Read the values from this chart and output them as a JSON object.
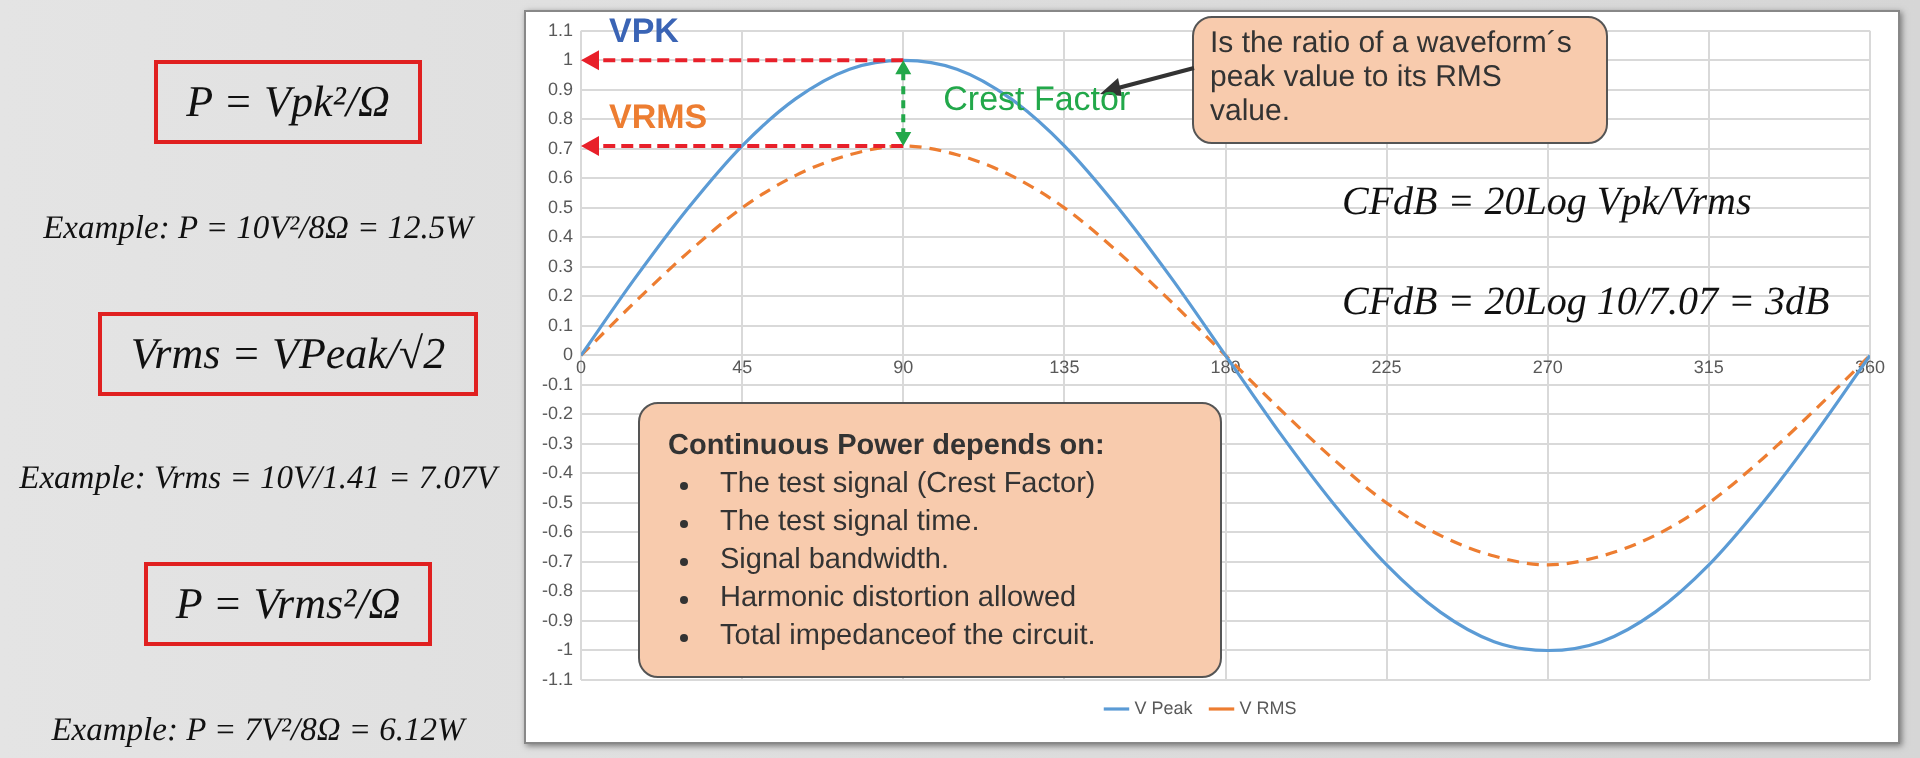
{
  "chart_data": {
    "type": "line",
    "x": [
      0,
      15,
      30,
      45,
      60,
      75,
      90,
      105,
      120,
      135,
      150,
      165,
      180,
      195,
      210,
      225,
      240,
      255,
      270,
      285,
      300,
      315,
      330,
      345,
      360
    ],
    "series": [
      {
        "name": "V Peak",
        "color": "#5b9bd5",
        "line_style": "solid",
        "values": [
          0,
          0.26,
          0.5,
          0.71,
          0.87,
          0.97,
          1,
          0.97,
          0.87,
          0.71,
          0.5,
          0.26,
          0,
          -0.26,
          -0.5,
          -0.71,
          -0.87,
          -0.97,
          -1,
          -0.97,
          -0.87,
          -0.71,
          -0.5,
          -0.26,
          0
        ]
      },
      {
        "name": "V RMS",
        "color": "#ed7d31",
        "line_style": "dashed",
        "values": [
          0,
          0.18,
          0.35,
          0.5,
          0.61,
          0.68,
          0.71,
          0.68,
          0.61,
          0.5,
          0.35,
          0.18,
          0,
          -0.18,
          -0.35,
          -0.5,
          -0.61,
          -0.68,
          -0.71,
          -0.68,
          -0.61,
          -0.5,
          -0.35,
          -0.18,
          0
        ]
      }
    ],
    "xlim": [
      0,
      360
    ],
    "xticks": [
      0,
      45,
      90,
      135,
      180,
      225,
      270,
      315,
      360
    ],
    "ylim": [
      -1.1,
      1.1
    ],
    "yticks": [
      -1.1,
      -1,
      -0.9,
      -0.8,
      -0.7,
      -0.6,
      -0.5,
      -0.4,
      -0.3,
      -0.2,
      -0.1,
      0,
      0.1,
      0.2,
      0.3,
      0.4,
      0.5,
      0.6,
      0.7,
      0.8,
      0.9,
      1,
      1.1
    ],
    "grid": true,
    "legend": "bottom",
    "marker": "none",
    "annotations": [
      "P = Vpk²/Ω",
      "Example:  P = 10V²/8Ω = 12.5W",
      "Vrms = VPeak/√2",
      "Example: Vrms = 10V/1.41 = 7.07V",
      "P = Vrms²/Ω",
      "Example:  P = 7V²/8Ω = 6.12W",
      "Is the ratio of a waveform´s peak value to its RMS value.",
      "CFdB = 20Log Vpk/Vrms",
      "CFdB = 20Log 10/7.07 = 3dB",
      "Continuous Power depends on:",
      "The test signal (Crest Factor)",
      "The test signal time.",
      "Signal bandwidth.",
      "Harmonic distortion allowed",
      "Total impedanceof the circuit.",
      {
        "text": "VPK",
        "x": 90,
        "y": 1
      },
      {
        "text": "VRMS",
        "x": 90,
        "y": 0.71
      },
      "Crest Factor"
    ]
  }
}
